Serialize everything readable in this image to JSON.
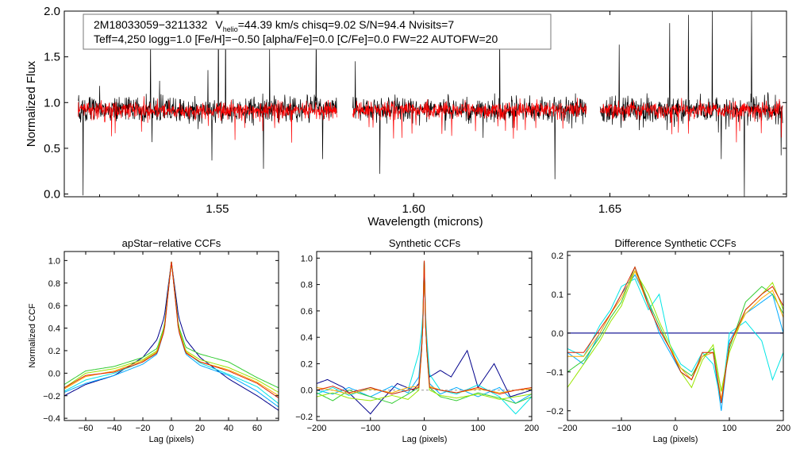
{
  "chart_data": [
    {
      "type": "line",
      "title": "",
      "xlabel": "Wavelength (microns)",
      "ylabel": "Normalized Flux",
      "xlim": [
        1.511,
        1.695
      ],
      "ylim": [
        -0.03,
        2.0
      ],
      "xticks": [
        1.55,
        1.6,
        1.65
      ],
      "xtick_labels": [
        "1.55",
        "1.60",
        "1.65"
      ],
      "yticks": [
        0.0,
        0.5,
        1.0,
        1.5,
        2.0
      ],
      "ytick_labels": [
        "0.0",
        "0.5",
        "1.0",
        "1.5",
        "2.0"
      ],
      "detector_ranges": [
        [
          1.5145,
          1.5805
        ],
        [
          1.5845,
          1.644
        ],
        [
          1.6475,
          1.694
        ]
      ],
      "series": [
        {
          "name": "observed",
          "color": "#000000",
          "seed": 7,
          "noise": 0.07
        },
        {
          "name": "model",
          "color": "#ff0000",
          "seed": 13,
          "noise": 0.045
        }
      ],
      "annotation": {
        "star": "2M18033059−3211332",
        "v_prefix": "V",
        "v_sub": "helio",
        "v_rest": "=44.39 km/s  chisq=9.02  S/N=94.4  Nvisits=7",
        "line2": "Teff=4,250 logg=1.0 [Fe/H]=−0.50 [alpha/Fe]=0.0 [C/Fe]=0.0 FW=22 AUTOFW=20"
      }
    },
    {
      "type": "line",
      "title": "apStar−relative CCFs",
      "xlabel": "Lag (pixels)",
      "ylabel": "Normalized CCF",
      "xlim": [
        -75,
        75
      ],
      "ylim": [
        -0.42,
        1.08
      ],
      "xticks": [
        -60,
        -40,
        -20,
        0,
        20,
        40,
        60
      ],
      "xtick_labels": [
        "−60",
        "−40",
        "−20",
        "0",
        "20",
        "40",
        "60"
      ],
      "yticks": [
        -0.4,
        -0.2,
        0.0,
        0.2,
        0.4,
        0.6,
        0.8,
        1.0
      ],
      "ytick_labels": [
        "−0.4",
        "−0.2",
        "0.0",
        "0.2",
        "0.4",
        "0.6",
        "0.8",
        "1.0"
      ],
      "series": [
        {
          "name": "visit 1",
          "color": "#00008b",
          "x": [
            -75,
            -60,
            -40,
            -20,
            -10,
            -5,
            0,
            5,
            10,
            20,
            40,
            60,
            75
          ],
          "y": [
            -0.2,
            -0.1,
            -0.02,
            0.14,
            0.3,
            0.5,
            0.99,
            0.5,
            0.3,
            0.14,
            -0.05,
            -0.2,
            -0.33
          ]
        },
        {
          "name": "visit 2",
          "color": "#00aaff",
          "x": [
            -75,
            -60,
            -40,
            -20,
            -10,
            -5,
            0,
            5,
            10,
            20,
            40,
            60,
            75
          ],
          "y": [
            -0.17,
            -0.09,
            -0.02,
            0.08,
            0.17,
            0.38,
            0.99,
            0.38,
            0.17,
            0.07,
            -0.02,
            -0.16,
            -0.3
          ]
        },
        {
          "name": "visit 3",
          "color": "#00e5e5",
          "x": [
            -75,
            -60,
            -40,
            -20,
            -10,
            -5,
            0,
            5,
            10,
            20,
            40,
            60,
            75
          ],
          "y": [
            -0.16,
            -0.06,
            0.0,
            0.1,
            0.19,
            0.4,
            0.99,
            0.4,
            0.19,
            0.09,
            -0.01,
            -0.12,
            -0.27
          ]
        },
        {
          "name": "visit 4",
          "color": "#33cc33",
          "x": [
            -75,
            -60,
            -40,
            -20,
            -10,
            -5,
            0,
            5,
            10,
            20,
            40,
            60,
            75
          ],
          "y": [
            -0.1,
            0.02,
            0.06,
            0.14,
            0.22,
            0.42,
            0.99,
            0.42,
            0.23,
            0.17,
            0.1,
            -0.04,
            -0.13
          ]
        },
        {
          "name": "visit 5",
          "color": "#99e600",
          "x": [
            -75,
            -60,
            -40,
            -20,
            -10,
            -5,
            0,
            5,
            10,
            20,
            40,
            60,
            75
          ],
          "y": [
            -0.13,
            0.0,
            0.04,
            0.12,
            0.2,
            0.4,
            0.99,
            0.4,
            0.2,
            0.12,
            0.05,
            -0.06,
            -0.17
          ]
        },
        {
          "name": "visit 6",
          "color": "#ffaa00",
          "x": [
            -75,
            -60,
            -40,
            -20,
            -10,
            -5,
            0,
            5,
            10,
            20,
            40,
            60,
            75
          ],
          "y": [
            -0.14,
            -0.03,
            0.02,
            0.11,
            0.19,
            0.39,
            0.99,
            0.39,
            0.19,
            0.1,
            0.03,
            -0.08,
            -0.2
          ]
        },
        {
          "name": "visit 7",
          "color": "#dd2200",
          "x": [
            -75,
            -60,
            -40,
            -20,
            -10,
            -5,
            0,
            5,
            10,
            20,
            40,
            60,
            75
          ],
          "y": [
            -0.13,
            -0.02,
            0.01,
            0.1,
            0.18,
            0.38,
            0.99,
            0.38,
            0.18,
            0.1,
            0.02,
            -0.09,
            -0.22
          ]
        }
      ]
    },
    {
      "type": "line",
      "title": "Synthetic CCFs",
      "xlabel": "Lag (pixels)",
      "ylabel": "",
      "xlim": [
        -200,
        200
      ],
      "ylim": [
        -0.23,
        1.05
      ],
      "xticks": [
        -200,
        -100,
        0,
        100,
        200
      ],
      "xtick_labels": [
        "−200",
        "−100",
        "0",
        "100",
        "200"
      ],
      "yticks": [
        -0.2,
        0.0,
        0.2,
        0.4,
        0.6,
        0.8,
        1.0
      ],
      "ytick_labels": [
        "−0.2",
        "0.0",
        "0.2",
        "0.4",
        "0.6",
        "0.8",
        "1.0"
      ],
      "series": [
        {
          "name": "visit 1",
          "color": "#00008b",
          "x": [
            -200,
            -180,
            -150,
            -120,
            -100,
            -80,
            -50,
            -20,
            -10,
            -3,
            0,
            3,
            10,
            30,
            50,
            80,
            100,
            130,
            160,
            200
          ],
          "y": [
            0.05,
            0.08,
            0.02,
            -0.1,
            -0.18,
            -0.08,
            0.05,
            0.0,
            0.05,
            0.4,
            0.98,
            0.4,
            0.1,
            0.15,
            0.1,
            0.3,
            0.02,
            0.2,
            -0.05,
            0.0
          ]
        },
        {
          "name": "visit 2",
          "color": "#00aaff",
          "x": [
            -200,
            -170,
            -140,
            -100,
            -60,
            -30,
            -10,
            -3,
            0,
            3,
            10,
            30,
            60,
            100,
            140,
            170,
            200
          ],
          "y": [
            0.0,
            -0.03,
            0.02,
            -0.05,
            0.03,
            -0.02,
            0.1,
            0.45,
            0.98,
            0.45,
            0.05,
            -0.03,
            0.02,
            -0.05,
            0.02,
            -0.1,
            -0.03
          ]
        },
        {
          "name": "visit 3",
          "color": "#00e5e5",
          "x": [
            -200,
            -170,
            -140,
            -100,
            -60,
            -30,
            -10,
            -3,
            0,
            3,
            10,
            30,
            60,
            100,
            140,
            170,
            200
          ],
          "y": [
            -0.03,
            0.02,
            -0.04,
            0.02,
            -0.03,
            0.0,
            0.28,
            0.5,
            0.98,
            0.5,
            0.12,
            0.0,
            -0.03,
            0.04,
            -0.05,
            -0.18,
            -0.05
          ]
        },
        {
          "name": "visit 4",
          "color": "#33cc33",
          "x": [
            -200,
            -170,
            -140,
            -100,
            -60,
            -30,
            -10,
            -3,
            0,
            3,
            10,
            30,
            60,
            100,
            140,
            170,
            200
          ],
          "y": [
            -0.02,
            -0.08,
            0.0,
            -0.05,
            -0.1,
            -0.03,
            0.02,
            0.4,
            0.98,
            0.4,
            0.02,
            -0.05,
            -0.08,
            -0.02,
            -0.06,
            -0.1,
            -0.05
          ]
        },
        {
          "name": "visit 5",
          "color": "#99e600",
          "x": [
            -200,
            -170,
            -140,
            -100,
            -60,
            -30,
            -10,
            -3,
            0,
            3,
            10,
            30,
            60,
            100,
            140,
            170,
            200
          ],
          "y": [
            -0.05,
            -0.02,
            -0.06,
            -0.08,
            -0.04,
            -0.07,
            0.0,
            0.4,
            0.98,
            0.4,
            0.0,
            -0.04,
            -0.06,
            -0.03,
            -0.07,
            -0.05,
            -0.03
          ]
        },
        {
          "name": "visit 6",
          "color": "#ffaa00",
          "x": [
            -200,
            -170,
            -140,
            -100,
            -60,
            -30,
            -10,
            -3,
            0,
            3,
            10,
            30,
            60,
            100,
            140,
            170,
            200
          ],
          "y": [
            0.02,
            0.0,
            -0.03,
            0.01,
            -0.02,
            0.02,
            0.03,
            0.4,
            0.98,
            0.4,
            0.03,
            0.0,
            -0.02,
            0.01,
            -0.02,
            0.0,
            0.01
          ]
        },
        {
          "name": "visit 7",
          "color": "#dd2200",
          "x": [
            -200,
            -170,
            -140,
            -100,
            -60,
            -30,
            -10,
            -3,
            0,
            3,
            10,
            30,
            60,
            100,
            140,
            170,
            200
          ],
          "y": [
            0.0,
            0.03,
            -0.02,
            0.02,
            -0.03,
            0.0,
            0.02,
            0.4,
            0.98,
            0.4,
            0.02,
            0.0,
            -0.02,
            0.02,
            -0.03,
            0.0,
            0.02
          ]
        }
      ]
    },
    {
      "type": "line",
      "title": "Difference Synthetic CCFs",
      "xlabel": "Lag (pixels)",
      "ylabel": "",
      "xlim": [
        -200,
        200
      ],
      "ylim": [
        -0.225,
        0.21
      ],
      "xticks": [
        -200,
        -100,
        0,
        100,
        200
      ],
      "xtick_labels": [
        "−200",
        "−100",
        "0",
        "100",
        "200"
      ],
      "yticks": [
        -0.2,
        -0.1,
        0.0,
        0.1,
        0.2
      ],
      "ytick_labels": [
        "−0.2",
        "−0.1",
        "0.0",
        "0.1",
        "0.2"
      ],
      "zero_line_color": "#00008b",
      "series": [
        {
          "name": "visit 2",
          "color": "#00aaff",
          "x": [
            -200,
            -170,
            -140,
            -120,
            -100,
            -75,
            -50,
            -30,
            -10,
            10,
            30,
            50,
            70,
            85,
            100,
            130,
            160,
            180,
            200
          ],
          "y": [
            -0.05,
            -0.08,
            0.0,
            0.05,
            0.1,
            0.15,
            0.08,
            0.0,
            -0.05,
            -0.1,
            -0.12,
            -0.06,
            -0.05,
            -0.2,
            -0.02,
            0.05,
            0.08,
            0.1,
            0.0
          ]
        },
        {
          "name": "visit 3",
          "color": "#00e5e5",
          "x": [
            -200,
            -170,
            -140,
            -120,
            -100,
            -75,
            -50,
            -30,
            -10,
            10,
            30,
            50,
            70,
            85,
            100,
            130,
            160,
            180,
            200
          ],
          "y": [
            -0.04,
            -0.06,
            0.02,
            0.06,
            0.12,
            0.14,
            0.06,
            0.1,
            -0.03,
            -0.08,
            -0.1,
            -0.05,
            -0.08,
            -0.18,
            0.0,
            0.03,
            -0.02,
            -0.12,
            -0.05
          ]
        },
        {
          "name": "visit 4",
          "color": "#33cc33",
          "x": [
            -200,
            -170,
            -140,
            -120,
            -100,
            -75,
            -50,
            -30,
            -10,
            10,
            30,
            50,
            70,
            85,
            100,
            130,
            160,
            180,
            200
          ],
          "y": [
            -0.1,
            -0.07,
            -0.01,
            0.04,
            0.08,
            0.17,
            0.08,
            0.02,
            -0.04,
            -0.09,
            -0.11,
            -0.06,
            -0.04,
            -0.15,
            -0.04,
            0.08,
            0.12,
            0.1,
            0.05
          ]
        },
        {
          "name": "visit 5",
          "color": "#99e600",
          "x": [
            -200,
            -170,
            -140,
            -120,
            -100,
            -75,
            -50,
            -30,
            -10,
            10,
            30,
            50,
            70,
            85,
            100,
            130,
            160,
            180,
            200
          ],
          "y": [
            -0.14,
            -0.08,
            -0.02,
            0.03,
            0.07,
            0.16,
            0.1,
            0.03,
            -0.03,
            -0.1,
            -0.14,
            -0.07,
            -0.03,
            -0.15,
            -0.05,
            0.06,
            0.1,
            0.13,
            0.06
          ]
        },
        {
          "name": "visit 6",
          "color": "#ffaa00",
          "x": [
            -200,
            -170,
            -140,
            -120,
            -100,
            -75,
            -50,
            -30,
            -10,
            10,
            30,
            50,
            70,
            85,
            100,
            130,
            160,
            180,
            200
          ],
          "y": [
            -0.06,
            -0.06,
            0.0,
            0.05,
            0.09,
            0.16,
            0.07,
            0.01,
            -0.04,
            -0.09,
            -0.12,
            -0.06,
            -0.05,
            -0.17,
            -0.03,
            0.05,
            0.09,
            0.11,
            0.04
          ]
        },
        {
          "name": "visit 7",
          "color": "#dd2200",
          "x": [
            -200,
            -170,
            -140,
            -120,
            -100,
            -75,
            -50,
            -30,
            -10,
            10,
            30,
            50,
            70,
            85,
            100,
            130,
            160,
            180,
            200
          ],
          "y": [
            -0.05,
            -0.05,
            0.01,
            0.05,
            0.1,
            0.17,
            0.07,
            0.01,
            -0.04,
            -0.1,
            -0.12,
            -0.05,
            -0.05,
            -0.18,
            -0.03,
            0.06,
            0.1,
            0.12,
            0.07
          ]
        }
      ]
    }
  ]
}
